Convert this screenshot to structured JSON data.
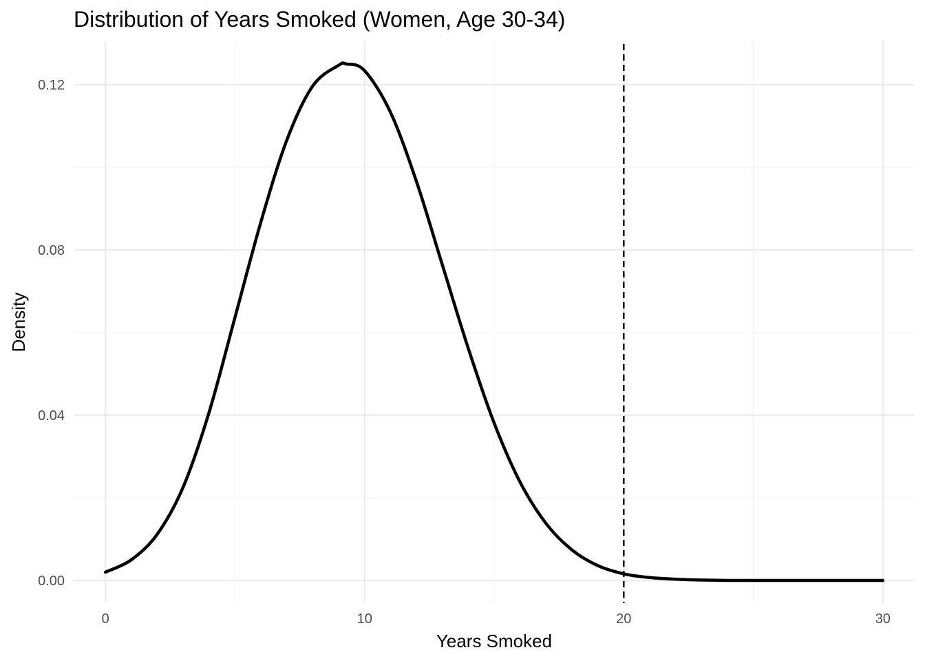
{
  "chart_data": {
    "type": "line",
    "title": "Distribution of Years Smoked (Women, Age 30-34)",
    "xlabel": "Years Smoked",
    "ylabel": "Density",
    "xlim": [
      -1.2,
      31.2
    ],
    "ylim": [
      -0.0055,
      0.1305
    ],
    "x_ticks": [
      0,
      10,
      20,
      30
    ],
    "x_tick_labels": [
      "0",
      "10",
      "20",
      "30"
    ],
    "x_minor_ticks": [
      5,
      15,
      25
    ],
    "y_ticks": [
      0.0,
      0.04,
      0.08,
      0.12
    ],
    "y_tick_labels": [
      "0.00",
      "0.04",
      "0.08",
      "0.12"
    ],
    "y_minor_ticks": [
      0.02,
      0.06,
      0.1
    ],
    "grid": true,
    "legend": "none",
    "reference_line": {
      "orientation": "vertical",
      "x": 20,
      "style": "dashed",
      "color": "#000000"
    },
    "series": [
      {
        "color": "#000000",
        "x": [
          0,
          1,
          2,
          3,
          4,
          5,
          6,
          7,
          8,
          9,
          9.3,
          10,
          11,
          12,
          13,
          14,
          15,
          16,
          17,
          18,
          19,
          20,
          21,
          22,
          23,
          24,
          25,
          26,
          27,
          28,
          29,
          30
        ],
        "y": [
          0.002,
          0.005,
          0.0112,
          0.0226,
          0.0407,
          0.0637,
          0.0868,
          0.1066,
          0.1197,
          0.1247,
          0.125,
          0.1234,
          0.1133,
          0.0966,
          0.0764,
          0.0562,
          0.0381,
          0.0238,
          0.0138,
          0.0074,
          0.0036,
          0.0016,
          0.0007,
          0.0003,
          0.0001,
          0.0,
          0.0,
          0.0,
          0.0,
          0.0,
          0.0,
          0.0
        ]
      }
    ]
  }
}
